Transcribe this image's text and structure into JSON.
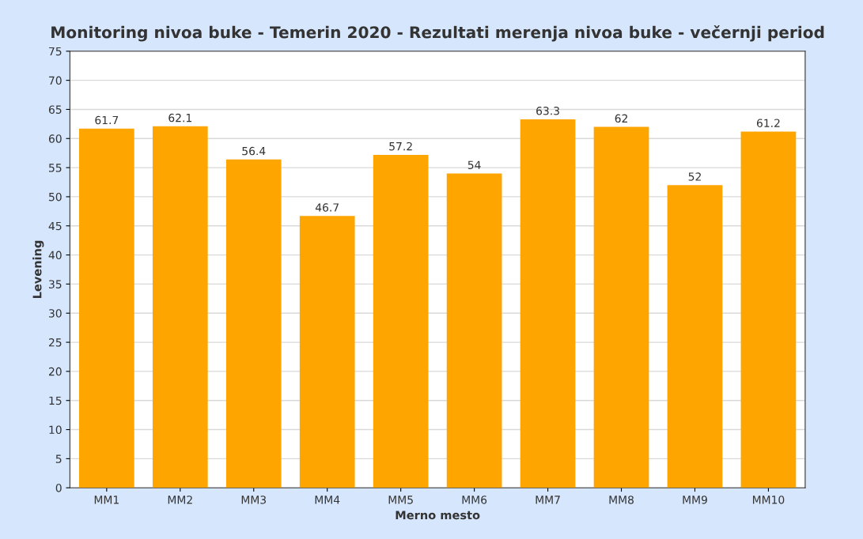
{
  "chart_data": {
    "type": "bar",
    "title": "Monitoring nivoa buke - Temerin 2020 - Rezultati merenja nivoa buke - večernji period",
    "xlabel": "Merno mesto",
    "ylabel": "Levening",
    "categories": [
      "MM1",
      "MM2",
      "MM3",
      "MM4",
      "MM5",
      "MM6",
      "MM7",
      "MM8",
      "MM9",
      "MM10"
    ],
    "values": [
      61.7,
      62.1,
      56.4,
      46.7,
      57.2,
      54,
      63.3,
      62,
      52,
      61.2
    ],
    "color": "#ffa500",
    "ylim": [
      0,
      75
    ],
    "yticks": [
      0,
      5,
      10,
      15,
      20,
      25,
      30,
      35,
      40,
      45,
      50,
      55,
      60,
      65,
      70,
      75
    ],
    "grid": "y",
    "data_labels": true
  }
}
